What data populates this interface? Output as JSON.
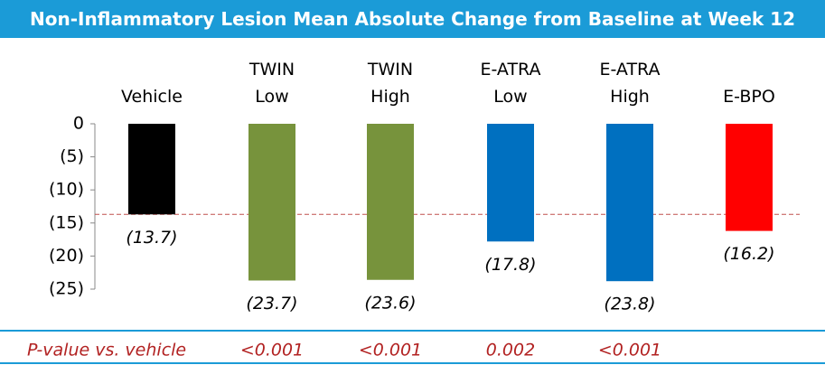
{
  "chart_data": {
    "type": "bar",
    "title": "Non-Inflammatory Lesion Mean Absolute Change from Baseline at Week 12",
    "categories": [
      "Vehicle",
      "TWIN Low",
      "TWIN High",
      "E-ATRA Low",
      "E-ATRA High",
      "E-BPO"
    ],
    "values": [
      -13.7,
      -23.7,
      -23.6,
      -17.8,
      -23.8,
      -16.2
    ],
    "value_labels": [
      "(13.7)",
      "(23.7)",
      "(23.6)",
      "(17.8)",
      "(23.8)",
      "(16.2)"
    ],
    "colors": [
      "#000000",
      "#77933c",
      "#77933c",
      "#0070c0",
      "#0070c0",
      "#ff0000"
    ],
    "ylim": [
      -25,
      0
    ],
    "yticks": [
      0,
      {
        "value": -5,
        "label": "(5)"
      },
      {
        "value": -10,
        "label": "(10)"
      },
      {
        "value": -15,
        "label": "(15)"
      },
      {
        "value": -20,
        "label": "(20)"
      },
      {
        "value": -25,
        "label": "(25)"
      }
    ],
    "p_value_label": "P-value vs. vehicle",
    "p_values": [
      null,
      "<0.001",
      "<0.001",
      "0.002",
      "<0.001",
      null
    ]
  }
}
